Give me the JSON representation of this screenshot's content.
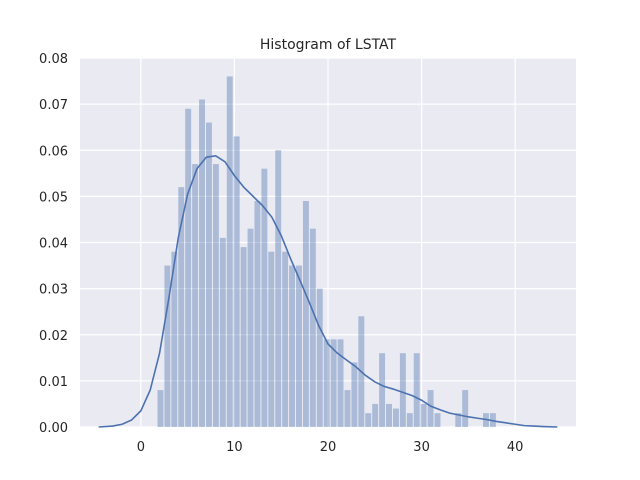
{
  "chart_data": {
    "type": "bar",
    "title": "Histogram of LSTAT",
    "xlabel": "",
    "ylabel": "",
    "xlim": [
      -6.5,
      46.5
    ],
    "ylim": [
      0,
      0.08
    ],
    "x_ticks": [
      "0",
      "10",
      "20",
      "30",
      "40"
    ],
    "y_ticks": [
      "0.00",
      "0.01",
      "0.02",
      "0.03",
      "0.04",
      "0.05",
      "0.06",
      "0.07",
      "0.08"
    ],
    "grid": true,
    "colors": {
      "background": "#eaeaf2",
      "grid": "#ffffff",
      "bars": "#4c72b0",
      "kde_line": "#4c72b0",
      "text": "#262626"
    },
    "bins": {
      "bin_width": 0.74,
      "start": 1.73,
      "density": [
        0.008,
        0.035,
        0.038,
        0.052,
        0.069,
        0.057,
        0.071,
        0.066,
        0.057,
        0.041,
        0.076,
        0.063,
        0.039,
        0.043,
        0.049,
        0.056,
        0.038,
        0.06,
        0.038,
        0.035,
        0.035,
        0.049,
        0.043,
        0.03,
        0.019,
        0.019,
        0.019,
        0.008,
        0.014,
        0.024,
        0.003,
        0.005,
        0.016,
        0.005,
        0.004,
        0.016,
        0.003,
        0.016,
        0.005,
        0.008,
        0.003,
        0.0,
        0.0,
        0.003,
        0.008,
        0.0,
        0.0,
        0.003,
        0.003
      ]
    },
    "kde": {
      "x": [
        -4.5,
        -3,
        -2,
        -1,
        0,
        1,
        2,
        3,
        4,
        5,
        6,
        7,
        8,
        9,
        10,
        11,
        12,
        13,
        14,
        15,
        16,
        17,
        18,
        19,
        20,
        21,
        22,
        23,
        24,
        25,
        26,
        27,
        28,
        29,
        30,
        31,
        32,
        33,
        34,
        35,
        36,
        37,
        38,
        39,
        40,
        41,
        42,
        43,
        44.5
      ],
      "y": [
        0.0,
        0.0002,
        0.0006,
        0.0015,
        0.0035,
        0.008,
        0.016,
        0.028,
        0.041,
        0.0505,
        0.056,
        0.0585,
        0.0588,
        0.0575,
        0.0545,
        0.052,
        0.05,
        0.048,
        0.0455,
        0.0415,
        0.0365,
        0.0318,
        0.027,
        0.022,
        0.018,
        0.016,
        0.0145,
        0.013,
        0.0112,
        0.0098,
        0.0088,
        0.0082,
        0.0075,
        0.0068,
        0.0058,
        0.0045,
        0.0037,
        0.003,
        0.0026,
        0.0022,
        0.0019,
        0.0016,
        0.0012,
        0.0009,
        0.0006,
        0.0003,
        0.0002,
        0.0001,
        0.0
      ]
    }
  }
}
